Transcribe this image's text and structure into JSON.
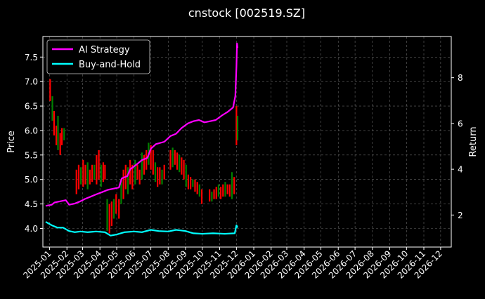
{
  "chart_data": {
    "type": "line",
    "title": "cnstock [002519.SZ]",
    "ylabel_left": "Price",
    "ylabel_right": "Return",
    "background": "#000000",
    "grid": true,
    "legend_placement": "top-left",
    "y_left": {
      "lim": [
        3.62,
        7.92
      ],
      "ticks": [
        4.0,
        4.5,
        5.0,
        5.5,
        6.0,
        6.5,
        7.0,
        7.5
      ]
    },
    "y_right": {
      "lim": [
        0.6,
        9.8
      ],
      "ticks": [
        2,
        4,
        6,
        8
      ]
    },
    "x_range": [
      "2024-12-20",
      "2026-12-20"
    ],
    "x_ticks": [
      "2025-01",
      "2025-02",
      "2025-03",
      "2025-04",
      "2025-05",
      "2025-06",
      "2025-07",
      "2025-08",
      "2025-09",
      "2025-10",
      "2025-11",
      "2025-12",
      "2026-01",
      "2026-02",
      "2026-03",
      "2026-04",
      "2026-05",
      "2026-06",
      "2026-07",
      "2026-08",
      "2026-09",
      "2026-10",
      "2026-11",
      "2026-12"
    ],
    "x_tick_labels": [
      "2025-01",
      "2025-02",
      "2025-03",
      "2025-04",
      "2025-05",
      "2025-06",
      "2025-07",
      "2025-08",
      "2025-09",
      "2025-10",
      "2025-11",
      "2025-12",
      "2026-01",
      "2026-02",
      "2026-03",
      "2026-04",
      "2026-05",
      "2026-06",
      "2026-07",
      "2026-08",
      "2026-09",
      "2026-10",
      "2026-11",
      "2026-12"
    ],
    "price_series": {
      "type": "ohlc-bars",
      "up_color": "#008000",
      "down_color": "#ff0000",
      "points": [
        {
          "date": "2025-01-02",
          "low": 6.6,
          "high": 7.05
        },
        {
          "date": "2025-01-06",
          "low": 6.2,
          "high": 6.7
        },
        {
          "date": "2025-01-09",
          "low": 5.9,
          "high": 6.4
        },
        {
          "date": "2025-01-13",
          "low": 5.7,
          "high": 6.1
        },
        {
          "date": "2025-01-16",
          "low": 5.6,
          "high": 6.3
        },
        {
          "date": "2025-01-20",
          "low": 5.5,
          "high": 5.95
        },
        {
          "date": "2025-01-23",
          "low": 5.7,
          "high": 6.05
        },
        {
          "date": "2025-01-27",
          "low": 5.8,
          "high": 6.05
        },
        {
          "date": "2025-02-18",
          "low": 4.7,
          "high": 5.2
        },
        {
          "date": "2025-02-22",
          "low": 4.8,
          "high": 5.3
        },
        {
          "date": "2025-02-26",
          "low": 4.9,
          "high": 5.25
        },
        {
          "date": "2025-03-02",
          "low": 4.85,
          "high": 5.4
        },
        {
          "date": "2025-03-06",
          "low": 4.9,
          "high": 5.3
        },
        {
          "date": "2025-03-10",
          "low": 4.8,
          "high": 5.35
        },
        {
          "date": "2025-03-14",
          "low": 4.9,
          "high": 5.2
        },
        {
          "date": "2025-03-18",
          "low": 4.95,
          "high": 5.3
        },
        {
          "date": "2025-03-22",
          "low": 5.0,
          "high": 5.3
        },
        {
          "date": "2025-03-26",
          "low": 4.9,
          "high": 5.5
        },
        {
          "date": "2025-03-30",
          "low": 5.0,
          "high": 5.6
        },
        {
          "date": "2025-04-03",
          "low": 4.85,
          "high": 5.3
        },
        {
          "date": "2025-04-07",
          "low": 4.95,
          "high": 5.35
        },
        {
          "date": "2025-04-10",
          "low": 5.0,
          "high": 5.3
        },
        {
          "date": "2025-04-14",
          "low": 3.95,
          "high": 4.6
        },
        {
          "date": "2025-04-18",
          "low": 3.9,
          "high": 4.5
        },
        {
          "date": "2025-04-22",
          "low": 4.05,
          "high": 4.55
        },
        {
          "date": "2025-04-26",
          "low": 4.2,
          "high": 4.6
        },
        {
          "date": "2025-04-30",
          "low": 4.3,
          "high": 4.7
        },
        {
          "date": "2025-05-05",
          "low": 4.2,
          "high": 4.6
        },
        {
          "date": "2025-05-09",
          "low": 4.5,
          "high": 5.0
        },
        {
          "date": "2025-05-13",
          "low": 4.6,
          "high": 5.2
        },
        {
          "date": "2025-05-17",
          "low": 4.8,
          "high": 5.3
        },
        {
          "date": "2025-05-21",
          "low": 4.7,
          "high": 5.25
        },
        {
          "date": "2025-05-25",
          "low": 4.9,
          "high": 5.4
        },
        {
          "date": "2025-05-29",
          "low": 4.8,
          "high": 5.3
        },
        {
          "date": "2025-06-03",
          "low": 4.9,
          "high": 5.4
        },
        {
          "date": "2025-06-07",
          "low": 5.0,
          "high": 5.3
        },
        {
          "date": "2025-06-11",
          "low": 4.9,
          "high": 5.2
        },
        {
          "date": "2025-06-15",
          "low": 5.0,
          "high": 5.55
        },
        {
          "date": "2025-06-19",
          "low": 5.1,
          "high": 5.5
        },
        {
          "date": "2025-06-23",
          "low": 5.2,
          "high": 5.6
        },
        {
          "date": "2025-06-27",
          "low": 5.3,
          "high": 5.75
        },
        {
          "date": "2025-07-01",
          "low": 5.2,
          "high": 5.7
        },
        {
          "date": "2025-07-05",
          "low": 5.1,
          "high": 5.6
        },
        {
          "date": "2025-07-09",
          "low": 4.95,
          "high": 5.35
        },
        {
          "date": "2025-07-13",
          "low": 4.85,
          "high": 5.25
        },
        {
          "date": "2025-07-17",
          "low": 4.9,
          "high": 5.25
        },
        {
          "date": "2025-07-21",
          "low": 4.9,
          "high": 5.2
        },
        {
          "date": "2025-07-25",
          "low": 5.0,
          "high": 5.3
        },
        {
          "date": "2025-08-05",
          "low": 5.2,
          "high": 5.6
        },
        {
          "date": "2025-08-09",
          "low": 5.25,
          "high": 5.65
        },
        {
          "date": "2025-08-13",
          "low": 5.3,
          "high": 5.6
        },
        {
          "date": "2025-08-17",
          "low": 5.2,
          "high": 5.55
        },
        {
          "date": "2025-08-21",
          "low": 5.15,
          "high": 5.5
        },
        {
          "date": "2025-08-25",
          "low": 5.1,
          "high": 5.45
        },
        {
          "date": "2025-08-29",
          "low": 5.0,
          "high": 5.4
        },
        {
          "date": "2025-09-02",
          "low": 4.85,
          "high": 5.3
        },
        {
          "date": "2025-09-06",
          "low": 4.8,
          "high": 5.1
        },
        {
          "date": "2025-09-10",
          "low": 4.8,
          "high": 5.05
        },
        {
          "date": "2025-09-14",
          "low": 4.85,
          "high": 5.0
        },
        {
          "date": "2025-09-18",
          "low": 4.75,
          "high": 5.0
        },
        {
          "date": "2025-09-22",
          "low": 4.7,
          "high": 4.95
        },
        {
          "date": "2025-09-26",
          "low": 4.65,
          "high": 4.9
        },
        {
          "date": "2025-09-30",
          "low": 4.5,
          "high": 4.8
        },
        {
          "date": "2025-10-14",
          "low": 4.55,
          "high": 4.8
        },
        {
          "date": "2025-10-18",
          "low": 4.55,
          "high": 4.75
        },
        {
          "date": "2025-10-22",
          "low": 4.6,
          "high": 4.8
        },
        {
          "date": "2025-10-26",
          "low": 4.6,
          "high": 4.85
        },
        {
          "date": "2025-10-30",
          "low": 4.65,
          "high": 4.9
        },
        {
          "date": "2025-11-03",
          "low": 4.6,
          "high": 4.85
        },
        {
          "date": "2025-11-07",
          "low": 4.65,
          "high": 4.9
        },
        {
          "date": "2025-11-11",
          "low": 4.65,
          "high": 4.95
        },
        {
          "date": "2025-11-15",
          "low": 4.7,
          "high": 4.9
        },
        {
          "date": "2025-11-19",
          "low": 4.65,
          "high": 4.9
        },
        {
          "date": "2025-11-23",
          "low": 4.6,
          "high": 5.15
        },
        {
          "date": "2025-11-27",
          "low": 4.7,
          "high": 5.05
        },
        {
          "date": "2025-12-01",
          "low": 5.7,
          "high": 6.5
        },
        {
          "date": "2025-12-03",
          "low": 5.8,
          "high": 6.3
        }
      ]
    },
    "series": [
      {
        "name": "AI Strategy",
        "color": "#ff00ff",
        "axis": "right",
        "points": [
          {
            "x": "2024-12-25",
            "y": 2.4
          },
          {
            "x": "2025-01-05",
            "y": 2.45
          },
          {
            "x": "2025-01-10",
            "y": 2.55
          },
          {
            "x": "2025-01-20",
            "y": 2.6
          },
          {
            "x": "2025-01-30",
            "y": 2.65
          },
          {
            "x": "2025-02-05",
            "y": 2.45
          },
          {
            "x": "2025-02-15",
            "y": 2.5
          },
          {
            "x": "2025-02-25",
            "y": 2.6
          },
          {
            "x": "2025-03-05",
            "y": 2.7
          },
          {
            "x": "2025-03-15",
            "y": 2.8
          },
          {
            "x": "2025-03-25",
            "y": 2.9
          },
          {
            "x": "2025-04-05",
            "y": 3.0
          },
          {
            "x": "2025-04-15",
            "y": 3.1
          },
          {
            "x": "2025-04-25",
            "y": 3.15
          },
          {
            "x": "2025-05-05",
            "y": 3.2
          },
          {
            "x": "2025-05-10",
            "y": 3.6
          },
          {
            "x": "2025-05-20",
            "y": 3.7
          },
          {
            "x": "2025-05-25",
            "y": 4.0
          },
          {
            "x": "2025-06-05",
            "y": 4.2
          },
          {
            "x": "2025-06-15",
            "y": 4.4
          },
          {
            "x": "2025-06-25",
            "y": 4.5
          },
          {
            "x": "2025-07-01",
            "y": 4.9
          },
          {
            "x": "2025-07-10",
            "y": 5.1
          },
          {
            "x": "2025-07-25",
            "y": 5.2
          },
          {
            "x": "2025-08-05",
            "y": 5.45
          },
          {
            "x": "2025-08-15",
            "y": 5.55
          },
          {
            "x": "2025-08-25",
            "y": 5.8
          },
          {
            "x": "2025-09-05",
            "y": 6.0
          },
          {
            "x": "2025-09-15",
            "y": 6.1
          },
          {
            "x": "2025-09-25",
            "y": 6.15
          },
          {
            "x": "2025-10-05",
            "y": 6.05
          },
          {
            "x": "2025-10-15",
            "y": 6.1
          },
          {
            "x": "2025-10-25",
            "y": 6.15
          },
          {
            "x": "2025-11-05",
            "y": 6.35
          },
          {
            "x": "2025-11-15",
            "y": 6.5
          },
          {
            "x": "2025-11-25",
            "y": 6.7
          },
          {
            "x": "2025-11-29",
            "y": 7.2
          },
          {
            "x": "2025-12-01",
            "y": 8.5
          },
          {
            "x": "2025-12-02",
            "y": 9.5
          },
          {
            "x": "2025-12-03",
            "y": 9.3
          }
        ]
      },
      {
        "name": "Buy-and-Hold",
        "color": "#00ffff",
        "axis": "right",
        "points": [
          {
            "x": "2024-12-25",
            "y": 1.7
          },
          {
            "x": "2025-01-05",
            "y": 1.55
          },
          {
            "x": "2025-01-15",
            "y": 1.45
          },
          {
            "x": "2025-01-25",
            "y": 1.45
          },
          {
            "x": "2025-02-05",
            "y": 1.3
          },
          {
            "x": "2025-02-15",
            "y": 1.25
          },
          {
            "x": "2025-02-25",
            "y": 1.28
          },
          {
            "x": "2025-03-10",
            "y": 1.25
          },
          {
            "x": "2025-03-25",
            "y": 1.28
          },
          {
            "x": "2025-04-10",
            "y": 1.25
          },
          {
            "x": "2025-04-20",
            "y": 1.1
          },
          {
            "x": "2025-05-01",
            "y": 1.15
          },
          {
            "x": "2025-05-15",
            "y": 1.25
          },
          {
            "x": "2025-06-01",
            "y": 1.28
          },
          {
            "x": "2025-06-15",
            "y": 1.25
          },
          {
            "x": "2025-07-01",
            "y": 1.35
          },
          {
            "x": "2025-07-15",
            "y": 1.3
          },
          {
            "x": "2025-08-01",
            "y": 1.28
          },
          {
            "x": "2025-08-15",
            "y": 1.35
          },
          {
            "x": "2025-09-01",
            "y": 1.3
          },
          {
            "x": "2025-09-15",
            "y": 1.2
          },
          {
            "x": "2025-10-01",
            "y": 1.18
          },
          {
            "x": "2025-10-20",
            "y": 1.2
          },
          {
            "x": "2025-11-10",
            "y": 1.18
          },
          {
            "x": "2025-11-28",
            "y": 1.2
          },
          {
            "x": "2025-12-01",
            "y": 1.55
          },
          {
            "x": "2025-12-03",
            "y": 1.45
          }
        ]
      }
    ]
  }
}
